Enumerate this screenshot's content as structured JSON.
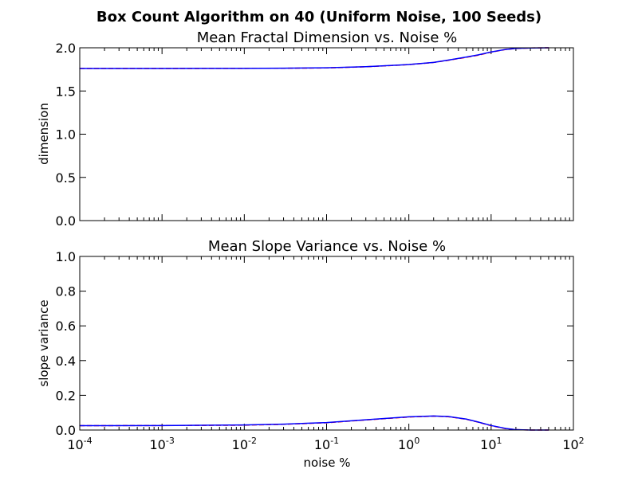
{
  "figure": {
    "suptitle": "Box Count Algorithm on 40 (Uniform Noise, 100 Seeds)"
  },
  "chart_data": [
    {
      "type": "line",
      "title": "Mean Fractal Dimension vs. Noise %",
      "xlabel": "",
      "ylabel": "dimension",
      "xscale": "log",
      "xlim": [
        0.0001,
        100
      ],
      "ylim": [
        0.0,
        2.0
      ],
      "yticks": [
        "0.0",
        "0.5",
        "1.0",
        "1.5",
        "2.0"
      ],
      "grid": false,
      "legend": "none",
      "series": [
        {
          "color": "#ff0000",
          "x": [
            0.0001,
            0.001,
            0.01,
            0.03,
            0.1,
            0.3,
            1,
            2,
            3,
            5,
            7,
            10,
            15,
            20,
            30,
            50
          ],
          "y": [
            1.76,
            1.76,
            1.762,
            1.763,
            1.767,
            1.78,
            1.805,
            1.83,
            1.855,
            1.89,
            1.915,
            1.95,
            1.98,
            1.992,
            1.998,
            2.0
          ]
        },
        {
          "color": "#0000ff",
          "x": [
            0.0001,
            0.001,
            0.01,
            0.03,
            0.1,
            0.3,
            1,
            2,
            3,
            5,
            7,
            10,
            15,
            20,
            30,
            50
          ],
          "y": [
            1.76,
            1.76,
            1.762,
            1.764,
            1.768,
            1.781,
            1.806,
            1.831,
            1.857,
            1.893,
            1.918,
            1.952,
            1.981,
            1.993,
            1.998,
            2.0
          ]
        }
      ]
    },
    {
      "type": "line",
      "title": "Mean Slope Variance vs. Noise %",
      "xlabel": "noise %",
      "ylabel": "slope variance",
      "xscale": "log",
      "xlim": [
        0.0001,
        100
      ],
      "ylim": [
        0.0,
        1.0
      ],
      "yticks": [
        "0.0",
        "0.2",
        "0.4",
        "0.6",
        "0.8",
        "1.0"
      ],
      "xticks": [
        {
          "base": "10",
          "exp": "-4"
        },
        {
          "base": "10",
          "exp": "-3"
        },
        {
          "base": "10",
          "exp": "-2"
        },
        {
          "base": "10",
          "exp": "-1"
        },
        {
          "base": "10",
          "exp": "0"
        },
        {
          "base": "10",
          "exp": "1"
        },
        {
          "base": "10",
          "exp": "2"
        }
      ],
      "grid": false,
      "legend": "none",
      "series": [
        {
          "color": "#ff0000",
          "x": [
            0.0001,
            0.001,
            0.01,
            0.03,
            0.1,
            0.3,
            1,
            2,
            3,
            5,
            7,
            10,
            15,
            20,
            30,
            50
          ],
          "y": [
            0.025,
            0.026,
            0.028,
            0.033,
            0.042,
            0.058,
            0.075,
            0.08,
            0.077,
            0.062,
            0.045,
            0.025,
            0.008,
            0.002,
            0.0,
            0.0
          ]
        },
        {
          "color": "#0000ff",
          "x": [
            0.0001,
            0.001,
            0.01,
            0.03,
            0.1,
            0.3,
            1,
            2,
            3,
            5,
            7,
            10,
            15,
            20,
            30,
            50
          ],
          "y": [
            0.025,
            0.026,
            0.029,
            0.034,
            0.043,
            0.059,
            0.076,
            0.081,
            0.078,
            0.063,
            0.046,
            0.026,
            0.009,
            0.002,
            0.0,
            0.0
          ]
        }
      ]
    }
  ]
}
